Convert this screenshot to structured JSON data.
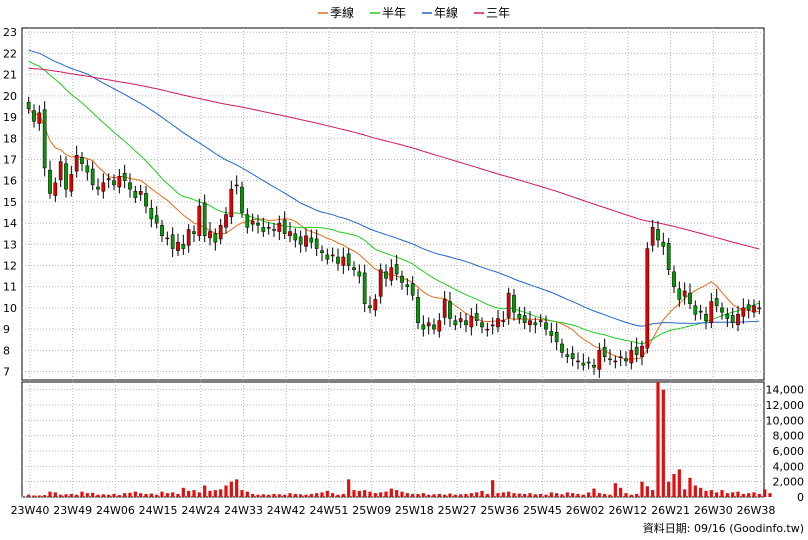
{
  "legend": [
    {
      "label": "季線",
      "color": "#e86a1a"
    },
    {
      "label": "半年",
      "color": "#22cc22"
    },
    {
      "label": "年線",
      "color": "#2266cc"
    },
    {
      "label": "三年",
      "color": "#cc1a66"
    }
  ],
  "source_note": "資料日期: 09/16 (Goodinfo.tw)",
  "chart_data": [
    {
      "type": "candlestick",
      "ylim": [
        6.6,
        23.2
      ],
      "yticks": [
        7,
        8,
        9,
        10,
        11,
        12,
        13,
        14,
        15,
        16,
        17,
        18,
        19,
        20,
        21,
        22,
        23
      ],
      "grid": true,
      "legend_position": "top-center",
      "x_ticks": [
        "23W40",
        "23W49",
        "24W06",
        "24W15",
        "24W24",
        "24W33",
        "24W42",
        "24W51",
        "25W09",
        "25W18",
        "25W27",
        "25W36",
        "25W45",
        "26W02",
        "26W12",
        "26W21",
        "26W30",
        "26W38"
      ],
      "close": [
        19.4,
        18.8,
        19.2,
        16.6,
        15.4,
        15.9,
        16.9,
        15.6,
        16.3,
        17.2,
        16.8,
        16.4,
        15.8,
        15.6,
        15.9,
        16.1,
        15.8,
        16.2,
        16.0,
        15.6,
        15.2,
        15.5,
        14.8,
        14.2,
        14.0,
        13.4,
        13.3,
        12.8,
        13.1,
        12.8,
        13.7,
        13.5,
        14.8,
        13.4,
        13.6,
        13.1,
        13.9,
        14.4,
        15.6,
        15.8,
        14.5,
        13.8,
        14.1,
        13.9,
        13.6,
        13.8,
        13.7,
        14.0,
        13.5,
        13.6,
        13.2,
        13.0,
        13.4,
        13.1,
        12.8,
        12.6,
        12.3,
        12.5,
        12.1,
        12.4,
        12.0,
        11.8,
        11.5,
        10.2,
        10.0,
        10.4,
        11.8,
        11.4,
        11.9,
        11.6,
        11.2,
        11.0,
        10.6,
        9.3,
        9.0,
        9.3,
        9.0,
        9.4,
        10.4,
        9.5,
        9.2,
        9.5,
        9.2,
        9.6,
        9.4,
        9.1,
        9.0,
        9.2,
        9.5,
        9.4,
        10.7,
        9.8,
        9.5,
        9.3,
        9.4,
        9.2,
        9.4,
        9.0,
        8.7,
        8.4,
        7.9,
        7.7,
        7.6,
        7.5,
        7.3,
        7.4,
        7.2,
        8.0,
        7.7,
        7.6,
        7.5,
        7.7,
        7.5,
        8.0,
        7.8,
        8.2,
        12.8,
        13.8,
        13.2,
        12.9,
        11.8,
        11.0,
        10.4,
        10.8,
        10.2,
        9.7,
        9.8,
        9.4,
        10.3,
        10.1,
        9.8,
        9.5,
        9.3,
        9.7,
        10.0,
        9.9,
        10.1,
        10.0
      ]
    },
    {
      "type": "bar",
      "series_name": "volume",
      "ylim": [
        0,
        15000
      ],
      "yticks": [
        0,
        2000,
        4000,
        6000,
        8000,
        10000,
        12000,
        14000
      ],
      "ytick_labels": [
        "0",
        "2,000",
        "4,000",
        "6,000",
        "8,000",
        "10,000",
        "12,000",
        "14,000"
      ],
      "values": [
        300,
        200,
        200,
        250,
        700,
        600,
        300,
        350,
        400,
        300,
        700,
        500,
        550,
        300,
        350,
        300,
        400,
        250,
        500,
        550,
        700,
        500,
        400,
        450,
        300,
        700,
        500,
        600,
        400,
        1200,
        800,
        900,
        600,
        1500,
        800,
        900,
        1000,
        1500,
        2000,
        2300,
        900,
        700,
        400,
        300,
        350,
        300,
        400,
        350,
        300,
        500,
        400,
        350,
        300,
        400,
        500,
        600,
        800,
        500,
        300,
        400,
        2300,
        900,
        800,
        900,
        700,
        500,
        600,
        700,
        1100,
        900,
        700,
        500,
        400,
        400,
        500,
        300,
        350,
        400,
        300,
        450,
        300,
        350,
        400,
        500,
        600,
        800,
        400,
        2200,
        500,
        600,
        700,
        500,
        450,
        400,
        500,
        350,
        400,
        300,
        600,
        500,
        350,
        600,
        500,
        400,
        300,
        600,
        1100,
        500,
        400,
        300,
        1800,
        1200,
        500,
        300,
        400,
        2000,
        1400,
        900,
        15000,
        14000,
        2000,
        3000,
        3600,
        1000,
        2500,
        1500,
        1200,
        800,
        900,
        600,
        900,
        500,
        600,
        700,
        400,
        500,
        600,
        400,
        1000,
        500
      ]
    }
  ]
}
